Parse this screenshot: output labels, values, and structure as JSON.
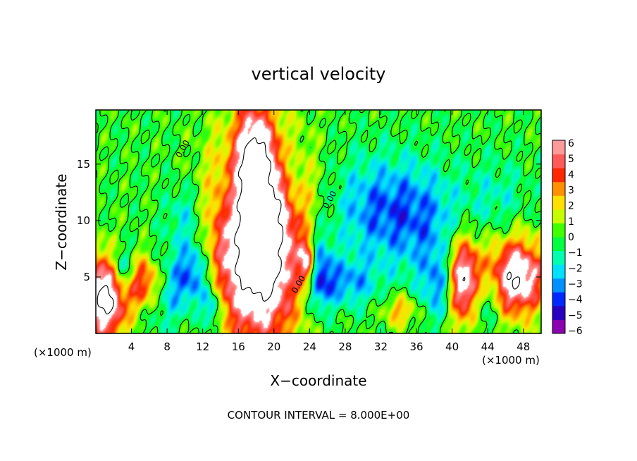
{
  "chart_data": {
    "type": "heatmap",
    "title": "vertical velocity",
    "xlabel": "X−coordinate",
    "ylabel": "Z−coordinate",
    "x_unit_label_left": "(×1000 m)",
    "x_unit_label_right": "(×1000 m)",
    "footnote": "CONTOUR INTERVAL = 8.000E+00",
    "contour_label": "0.00",
    "xlim": [
      0,
      50
    ],
    "ylim": [
      0,
      19.8
    ],
    "xticks": [
      "4",
      "8",
      "12",
      "16",
      "20",
      "24",
      "28",
      "32",
      "36",
      "40",
      "44",
      "48"
    ],
    "yticks": [
      "5",
      "10",
      "15"
    ],
    "colorbar": {
      "ticks": [
        "6",
        "5",
        "4",
        "3",
        "2",
        "1",
        "0",
        "−1",
        "−2",
        "−3",
        "−4",
        "−5",
        "−6"
      ],
      "range": [
        -6,
        6
      ],
      "colors": [
        "#8b00b0",
        "#2a00c0",
        "#0028ff",
        "#0090ff",
        "#00e0ff",
        "#00ffb0",
        "#00ff40",
        "#40ff00",
        "#c8ff00",
        "#ffe000",
        "#ff9000",
        "#ff2800",
        "#ff5a5a",
        "#ff9a9a"
      ]
    },
    "features": [
      {
        "kind": "updraft",
        "x": 18.2,
        "z": 8.2,
        "sx": 3.4,
        "sz": 6.2,
        "amp": 11
      },
      {
        "kind": "updraft",
        "x": 17.8,
        "z": 16,
        "sx": 1.4,
        "sz": 3.5,
        "amp": 5
      },
      {
        "kind": "updraft",
        "x": 5.6,
        "z": 4.5,
        "sx": 1.7,
        "sz": 1.8,
        "amp": 8
      },
      {
        "kind": "updraft",
        "x": 1.0,
        "z": 3.2,
        "sx": 1.8,
        "sz": 2.6,
        "amp": 9
      },
      {
        "kind": "updraft",
        "x": 23.8,
        "z": 6.2,
        "sx": 0.6,
        "sz": 1.4,
        "amp": 6
      },
      {
        "kind": "updraft",
        "x": 41.2,
        "z": 4.6,
        "sx": 1.5,
        "sz": 2.6,
        "amp": 9
      },
      {
        "kind": "updraft",
        "x": 47.3,
        "z": 5.0,
        "sx": 2.2,
        "sz": 2.4,
        "amp": 8
      },
      {
        "kind": "updraft",
        "x": 34.2,
        "z": 2.0,
        "sx": 1.4,
        "sz": 1.0,
        "amp": 3
      },
      {
        "kind": "downdraft",
        "x": 7.0,
        "z": 4.2,
        "sx": 2.4,
        "sz": 2.2,
        "amp": -4.8
      },
      {
        "kind": "downdraft",
        "x": 3.0,
        "z": 5.5,
        "sx": 1.0,
        "sz": 1.5,
        "amp": -4.5
      },
      {
        "kind": "downdraft",
        "x": 39.0,
        "z": 4.2,
        "sx": 1.5,
        "sz": 2.2,
        "amp": -4.3
      },
      {
        "kind": "downdraft",
        "x": 25.0,
        "z": 5.5,
        "sx": 1.1,
        "sz": 2.5,
        "amp": -4.5
      },
      {
        "kind": "downdraft",
        "x": 31.5,
        "z": 11,
        "sx": 3.5,
        "sz": 3.2,
        "amp": -3.2
      },
      {
        "kind": "downdraft",
        "x": 37.0,
        "z": 10,
        "sx": 3.0,
        "sz": 3.5,
        "amp": -2.6
      },
      {
        "kind": "downdraft",
        "x": 11.0,
        "z": 5.5,
        "sx": 1.2,
        "sz": 2.0,
        "amp": -3.5
      },
      {
        "kind": "downdraft",
        "x": 13.0,
        "z": 2.2,
        "sx": 0.8,
        "sz": 1.5,
        "amp": -4.0
      },
      {
        "kind": "downdraft",
        "x": 28.0,
        "z": 4.5,
        "sx": 2.5,
        "sz": 1.5,
        "amp": -3.0
      },
      {
        "kind": "downdraft",
        "x": 43.5,
        "z": 3.0,
        "sx": 1.2,
        "sz": 2.0,
        "amp": -3.0
      },
      {
        "kind": "downdraft",
        "x": 10.0,
        "z": 10.5,
        "sx": 1.5,
        "sz": 2.0,
        "amp": -2.0
      },
      {
        "kind": "downdraft",
        "x": 45.0,
        "z": 12.0,
        "sx": 2.5,
        "sz": 2.5,
        "amp": -1.5
      },
      {
        "kind": "downdraft",
        "x": 21.8,
        "z": 14,
        "sx": 0.8,
        "sz": 2.5,
        "amp": -2.0
      },
      {
        "kind": "downdraft",
        "x": 15.0,
        "z": 12.0,
        "sx": 0.8,
        "sz": 2.5,
        "amp": -2.0
      }
    ]
  }
}
